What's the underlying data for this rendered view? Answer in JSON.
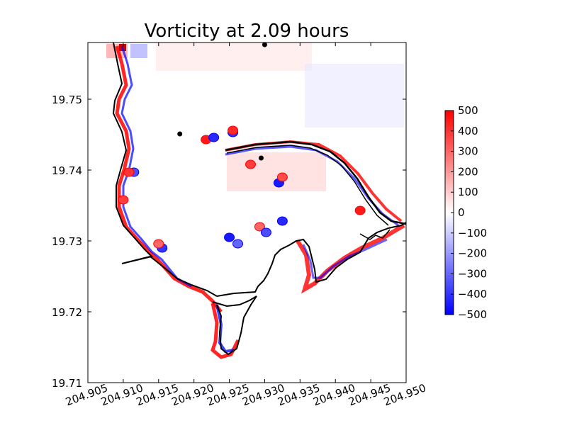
{
  "chart_data": {
    "type": "heatmap",
    "title": "Vorticity at 2.09 hours",
    "xlabel": "",
    "ylabel": "",
    "xlim": [
      204.905,
      204.95
    ],
    "ylim": [
      19.71,
      19.758
    ],
    "x_ticks": [
      204.905,
      204.91,
      204.915,
      204.92,
      204.925,
      204.93,
      204.935,
      204.94,
      204.945,
      204.95
    ],
    "x_tick_labels": [
      "204.905",
      "204.910",
      "204.915",
      "204.920",
      "204.925",
      "204.930",
      "204.935",
      "204.940",
      "204.945",
      "204.950"
    ],
    "y_ticks": [
      19.71,
      19.72,
      19.73,
      19.74,
      19.75
    ],
    "y_tick_labels": [
      "19.71",
      "19.72",
      "19.73",
      "19.74",
      "19.75"
    ],
    "grid": false,
    "colorbar": {
      "colormap": "bwr",
      "vmin": -500,
      "vmax": 500,
      "ticks": [
        500,
        400,
        300,
        200,
        100,
        0,
        -100,
        -200,
        -300,
        -400,
        -500
      ],
      "tick_labels": [
        "500",
        "400",
        "300",
        "200",
        "100",
        "0",
        "−100",
        "−200",
        "−300",
        "−400",
        "−500"
      ],
      "colors": {
        "low": "#0000ff",
        "mid": "#ffffff",
        "high": "#ff0000"
      }
    },
    "markers": [
      {
        "x": 204.93,
        "y": 19.7577
      },
      {
        "x": 204.918,
        "y": 19.7451
      },
      {
        "x": 204.9295,
        "y": 19.7417
      }
    ],
    "shoreline_color": "#000000",
    "vortices": [
      {
        "x": 204.9217,
        "y": 19.7443,
        "value": 450
      },
      {
        "x": 204.9228,
        "y": 19.7446,
        "value": -420
      },
      {
        "x": 204.9255,
        "y": 19.7453,
        "value": -400
      },
      {
        "x": 204.9255,
        "y": 19.7456,
        "value": 420
      },
      {
        "x": 204.928,
        "y": 19.7408,
        "value": 380
      },
      {
        "x": 204.932,
        "y": 19.7382,
        "value": -450
      },
      {
        "x": 204.9325,
        "y": 19.739,
        "value": 350
      },
      {
        "x": 204.9325,
        "y": 19.7328,
        "value": -420
      },
      {
        "x": 204.9293,
        "y": 19.732,
        "value": 300
      },
      {
        "x": 204.9302,
        "y": 19.7312,
        "value": -350
      },
      {
        "x": 204.925,
        "y": 19.7305,
        "value": -450
      },
      {
        "x": 204.9262,
        "y": 19.7296,
        "value": -300
      },
      {
        "x": 204.9155,
        "y": 19.729,
        "value": -400
      },
      {
        "x": 204.915,
        "y": 19.7296,
        "value": 300
      },
      {
        "x": 204.9115,
        "y": 19.7397,
        "value": -350
      },
      {
        "x": 204.9108,
        "y": 19.7397,
        "value": 400
      },
      {
        "x": 204.91,
        "y": 19.7358,
        "value": 380
      },
      {
        "x": 204.9435,
        "y": 19.7343,
        "value": 450
      }
    ]
  }
}
